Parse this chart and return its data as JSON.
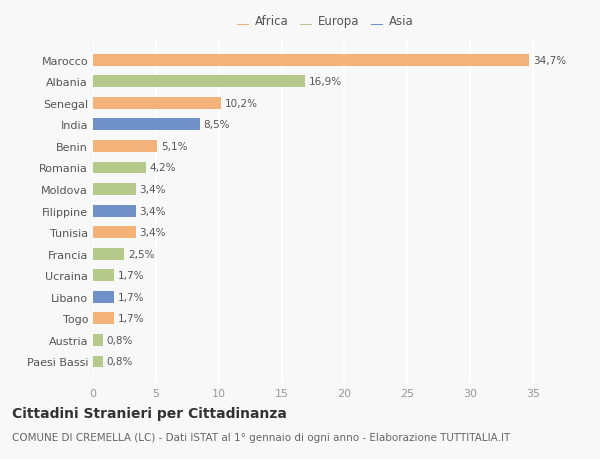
{
  "countries": [
    "Paesi Bassi",
    "Austria",
    "Togo",
    "Libano",
    "Ucraina",
    "Francia",
    "Tunisia",
    "Filippine",
    "Moldova",
    "Romania",
    "Benin",
    "India",
    "Senegal",
    "Albania",
    "Marocco"
  ],
  "values": [
    0.8,
    0.8,
    1.7,
    1.7,
    1.7,
    2.5,
    3.4,
    3.4,
    3.4,
    4.2,
    5.1,
    8.5,
    10.2,
    16.9,
    34.7
  ],
  "labels": [
    "0,8%",
    "0,8%",
    "1,7%",
    "1,7%",
    "1,7%",
    "2,5%",
    "3,4%",
    "3,4%",
    "3,4%",
    "4,2%",
    "5,1%",
    "8,5%",
    "10,2%",
    "16,9%",
    "34,7%"
  ],
  "continents": [
    "Europa",
    "Europa",
    "Africa",
    "Asia",
    "Europa",
    "Europa",
    "Africa",
    "Asia",
    "Europa",
    "Europa",
    "Africa",
    "Asia",
    "Africa",
    "Europa",
    "Africa"
  ],
  "colors": {
    "Africa": "#F2B279",
    "Europa": "#B5C98A",
    "Asia": "#7090C8"
  },
  "title": "Cittadini Stranieri per Cittadinanza",
  "subtitle": "COMUNE DI CREMELLA (LC) - Dati ISTAT al 1° gennaio di ogni anno - Elaborazione TUTTITALIA.IT",
  "xlim": [
    0,
    37
  ],
  "xticks": [
    0,
    5,
    10,
    15,
    20,
    25,
    30,
    35
  ],
  "background_color": "#f8f8f8",
  "bar_height": 0.55,
  "title_fontsize": 10,
  "subtitle_fontsize": 7.5,
  "label_fontsize": 7.5,
  "tick_fontsize": 8,
  "legend_fontsize": 8.5
}
